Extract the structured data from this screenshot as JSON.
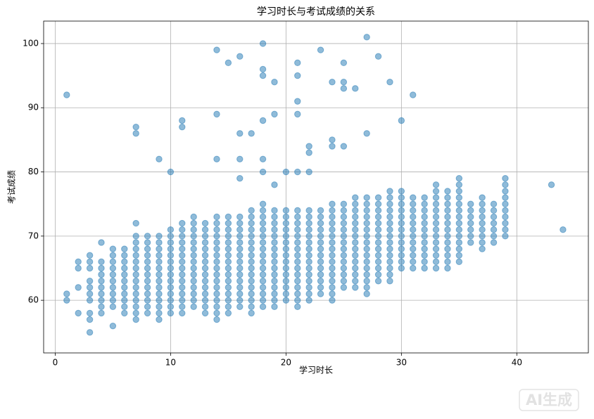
{
  "chart_data": {
    "type": "scatter",
    "title": "学习时长与考试成绩的关系",
    "x_label": "学习时长",
    "y_label": "考试成绩",
    "color": "#1f77b4",
    "alpha": 0.5,
    "grid": true,
    "xlim": [
      -1,
      46.2
    ],
    "ylim": [
      51.8,
      103.5
    ],
    "xticks": [
      0,
      10,
      20,
      30,
      40
    ],
    "yticks": [
      60,
      70,
      80,
      90,
      100
    ],
    "x": [
      1,
      1,
      1,
      2,
      2,
      2,
      2,
      3,
      3,
      3,
      3,
      3,
      3,
      3,
      3,
      3,
      3,
      4,
      4,
      4,
      4,
      4,
      4,
      4,
      4,
      4,
      4,
      5,
      5,
      5,
      5,
      5,
      5,
      5,
      5,
      5,
      5,
      5,
      6,
      6,
      6,
      6,
      6,
      6,
      6,
      6,
      6,
      6,
      6,
      7,
      7,
      7,
      7,
      7,
      7,
      7,
      7,
      7,
      7,
      7,
      7,
      7,
      7,
      7,
      7,
      7,
      8,
      8,
      8,
      8,
      8,
      8,
      8,
      8,
      8,
      8,
      8,
      8,
      8,
      9,
      9,
      9,
      9,
      9,
      9,
      9,
      9,
      9,
      9,
      9,
      9,
      9,
      9,
      9,
      10,
      10,
      10,
      10,
      10,
      10,
      10,
      10,
      10,
      10,
      10,
      10,
      10,
      10,
      10,
      11,
      11,
      11,
      11,
      11,
      11,
      11,
      11,
      11,
      11,
      11,
      11,
      11,
      11,
      11,
      11,
      11,
      12,
      12,
      12,
      12,
      12,
      12,
      12,
      12,
      12,
      12,
      12,
      12,
      12,
      12,
      12,
      13,
      13,
      13,
      13,
      13,
      13,
      13,
      13,
      13,
      13,
      13,
      13,
      13,
      13,
      13,
      14,
      14,
      14,
      14,
      14,
      14,
      14,
      14,
      14,
      14,
      14,
      14,
      14,
      14,
      14,
      14,
      14,
      14,
      14,
      14,
      15,
      15,
      15,
      15,
      15,
      15,
      15,
      15,
      15,
      15,
      15,
      15,
      15,
      15,
      15,
      15,
      15,
      16,
      16,
      16,
      16,
      16,
      16,
      16,
      16,
      16,
      16,
      16,
      16,
      16,
      16,
      16,
      16,
      16,
      16,
      16,
      17,
      17,
      17,
      17,
      17,
      17,
      17,
      17,
      17,
      17,
      17,
      17,
      17,
      17,
      17,
      17,
      17,
      17,
      18,
      18,
      18,
      18,
      18,
      18,
      18,
      18,
      18,
      18,
      18,
      18,
      18,
      18,
      18,
      18,
      18,
      18,
      18,
      18,
      18,
      18,
      18,
      19,
      19,
      19,
      19,
      19,
      19,
      19,
      19,
      19,
      19,
      19,
      19,
      19,
      19,
      19,
      19,
      19,
      19,
      19,
      20,
      20,
      20,
      20,
      20,
      20,
      20,
      20,
      20,
      20,
      20,
      20,
      20,
      20,
      20,
      20,
      21,
      21,
      21,
      21,
      21,
      21,
      21,
      21,
      21,
      21,
      21,
      21,
      21,
      21,
      21,
      21,
      21,
      21,
      21,
      21,
      21,
      22,
      22,
      22,
      22,
      22,
      22,
      22,
      22,
      22,
      22,
      22,
      22,
      22,
      22,
      22,
      22,
      22,
      22,
      23,
      23,
      23,
      23,
      23,
      23,
      23,
      23,
      23,
      23,
      23,
      23,
      23,
      23,
      23,
      24,
      24,
      24,
      24,
      24,
      24,
      24,
      24,
      24,
      24,
      24,
      24,
      24,
      24,
      24,
      24,
      24,
      24,
      24,
      25,
      25,
      25,
      25,
      25,
      25,
      25,
      25,
      25,
      25,
      25,
      25,
      25,
      25,
      25,
      25,
      25,
      25,
      26,
      26,
      26,
      26,
      26,
      26,
      26,
      26,
      26,
      26,
      26,
      26,
      26,
      26,
      26,
      26,
      27,
      27,
      27,
      27,
      27,
      27,
      27,
      27,
      27,
      27,
      27,
      27,
      27,
      27,
      27,
      27,
      27,
      27,
      28,
      28,
      28,
      28,
      28,
      28,
      28,
      28,
      28,
      28,
      28,
      28,
      28,
      28,
      28,
      29,
      29,
      29,
      29,
      29,
      29,
      29,
      29,
      29,
      29,
      29,
      29,
      29,
      29,
      29,
      29,
      30,
      30,
      30,
      30,
      30,
      30,
      30,
      30,
      30,
      30,
      30,
      30,
      30,
      30,
      31,
      31,
      31,
      31,
      31,
      31,
      31,
      31,
      31,
      31,
      31,
      31,
      31,
      32,
      32,
      32,
      32,
      32,
      32,
      32,
      32,
      32,
      32,
      32,
      32,
      33,
      33,
      33,
      33,
      33,
      33,
      33,
      33,
      33,
      33,
      33,
      33,
      33,
      33,
      34,
      34,
      34,
      34,
      34,
      34,
      34,
      34,
      34,
      34,
      34,
      34,
      34,
      35,
      35,
      35,
      35,
      35,
      35,
      35,
      35,
      35,
      35,
      35,
      35,
      35,
      35,
      36,
      36,
      36,
      36,
      36,
      36,
      36,
      37,
      37,
      37,
      37,
      37,
      37,
      37,
      37,
      37,
      38,
      38,
      38,
      38,
      38,
      38,
      38,
      39,
      39,
      39,
      39,
      39,
      39,
      39,
      39,
      39,
      39,
      43,
      44
    ],
    "values": [
      60,
      61,
      92,
      58,
      62,
      65,
      66,
      55,
      57,
      58,
      60,
      61,
      62,
      63,
      65,
      66,
      67,
      58,
      59,
      60,
      61,
      62,
      63,
      64,
      65,
      66,
      69,
      56,
      59,
      60,
      61,
      62,
      63,
      64,
      65,
      66,
      67,
      68,
      58,
      59,
      60,
      61,
      62,
      63,
      64,
      65,
      66,
      67,
      68,
      57,
      58,
      59,
      60,
      61,
      62,
      63,
      64,
      65,
      66,
      67,
      68,
      69,
      70,
      72,
      86,
      87,
      58,
      59,
      60,
      61,
      62,
      63,
      64,
      65,
      66,
      67,
      68,
      69,
      70,
      57,
      58,
      59,
      60,
      61,
      62,
      63,
      64,
      65,
      66,
      67,
      68,
      69,
      70,
      82,
      58,
      59,
      60,
      61,
      62,
      63,
      64,
      65,
      66,
      67,
      68,
      69,
      70,
      71,
      80,
      58,
      59,
      60,
      61,
      62,
      63,
      64,
      65,
      66,
      67,
      68,
      69,
      70,
      71,
      72,
      87,
      88,
      59,
      60,
      61,
      62,
      63,
      64,
      65,
      66,
      67,
      68,
      69,
      70,
      71,
      72,
      73,
      58,
      59,
      60,
      61,
      62,
      63,
      64,
      65,
      66,
      67,
      68,
      69,
      70,
      71,
      72,
      57,
      58,
      59,
      60,
      61,
      62,
      63,
      64,
      65,
      66,
      67,
      68,
      69,
      70,
      71,
      72,
      73,
      82,
      89,
      99,
      58,
      59,
      60,
      61,
      62,
      63,
      64,
      65,
      66,
      67,
      68,
      69,
      70,
      71,
      72,
      73,
      97,
      59,
      60,
      61,
      62,
      63,
      64,
      65,
      66,
      67,
      68,
      69,
      70,
      71,
      72,
      73,
      79,
      82,
      86,
      98,
      58,
      59,
      60,
      61,
      62,
      63,
      64,
      65,
      66,
      67,
      68,
      69,
      70,
      71,
      72,
      73,
      74,
      86,
      59,
      60,
      61,
      62,
      63,
      64,
      65,
      66,
      67,
      68,
      69,
      70,
      71,
      72,
      73,
      74,
      75,
      80,
      82,
      88,
      95,
      96,
      100,
      59,
      60,
      61,
      62,
      63,
      64,
      65,
      66,
      67,
      68,
      69,
      70,
      71,
      72,
      73,
      74,
      78,
      89,
      94,
      60,
      61,
      62,
      63,
      64,
      65,
      66,
      67,
      68,
      69,
      70,
      71,
      72,
      73,
      74,
      80,
      59,
      60,
      61,
      62,
      63,
      64,
      65,
      66,
      67,
      68,
      69,
      70,
      71,
      72,
      73,
      74,
      80,
      89,
      91,
      95,
      97,
      60,
      61,
      62,
      63,
      64,
      65,
      66,
      67,
      68,
      69,
      70,
      71,
      72,
      73,
      74,
      80,
      83,
      84,
      61,
      62,
      63,
      64,
      65,
      66,
      67,
      68,
      69,
      70,
      71,
      72,
      73,
      74,
      99,
      60,
      61,
      62,
      63,
      64,
      65,
      66,
      67,
      68,
      69,
      70,
      71,
      72,
      73,
      74,
      75,
      84,
      85,
      94,
      62,
      63,
      64,
      65,
      66,
      67,
      68,
      69,
      70,
      71,
      72,
      73,
      74,
      75,
      84,
      93,
      94,
      97,
      62,
      63,
      64,
      65,
      66,
      67,
      68,
      69,
      70,
      71,
      72,
      73,
      74,
      75,
      76,
      93,
      61,
      62,
      63,
      64,
      65,
      66,
      67,
      68,
      69,
      70,
      71,
      72,
      73,
      74,
      75,
      76,
      86,
      101,
      63,
      64,
      65,
      66,
      67,
      68,
      69,
      70,
      71,
      72,
      73,
      74,
      75,
      76,
      98,
      63,
      64,
      65,
      66,
      67,
      68,
      69,
      70,
      71,
      72,
      73,
      74,
      75,
      76,
      77,
      94,
      65,
      66,
      67,
      68,
      69,
      70,
      71,
      72,
      73,
      74,
      75,
      76,
      77,
      88,
      65,
      66,
      67,
      68,
      69,
      70,
      71,
      72,
      73,
      74,
      75,
      76,
      92,
      65,
      66,
      67,
      68,
      69,
      70,
      71,
      72,
      73,
      74,
      75,
      76,
      65,
      66,
      67,
      68,
      69,
      70,
      71,
      72,
      73,
      74,
      75,
      76,
      77,
      78,
      65,
      66,
      67,
      68,
      69,
      70,
      71,
      72,
      73,
      74,
      75,
      76,
      77,
      66,
      67,
      68,
      69,
      70,
      71,
      72,
      73,
      74,
      75,
      76,
      77,
      78,
      79,
      69,
      70,
      71,
      72,
      73,
      74,
      75,
      68,
      69,
      70,
      71,
      72,
      73,
      74,
      75,
      76,
      69,
      70,
      71,
      72,
      73,
      74,
      75,
      70,
      71,
      72,
      73,
      74,
      75,
      76,
      77,
      78,
      79,
      78,
      71
    ]
  },
  "watermark": "AI生成"
}
